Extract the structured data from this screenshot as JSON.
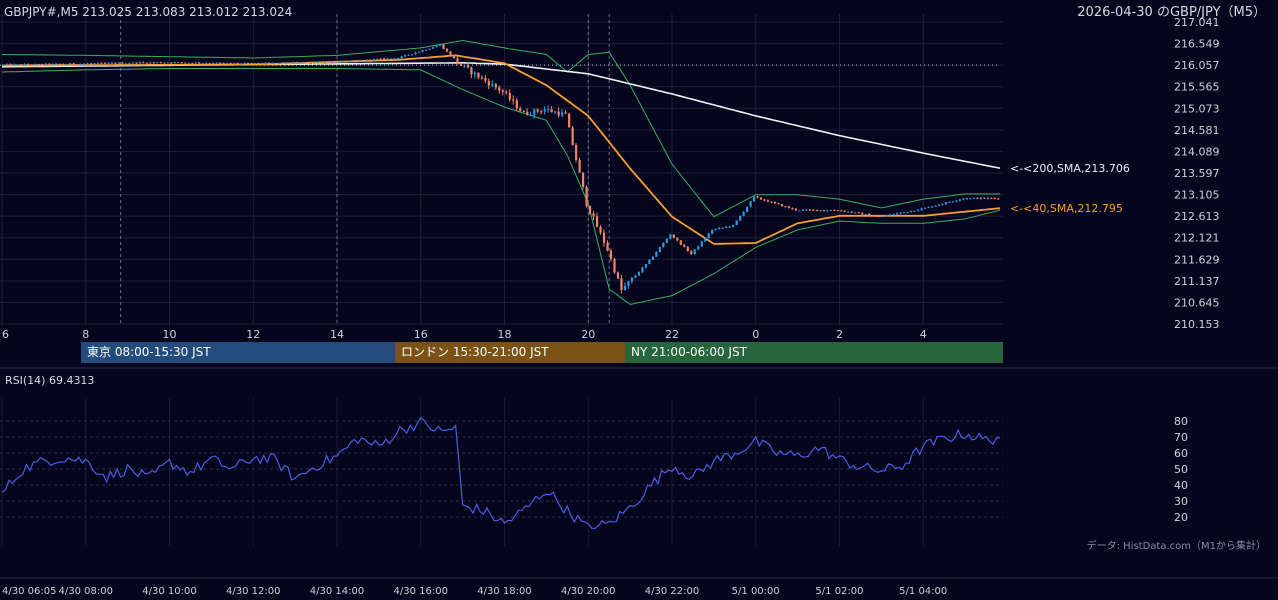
{
  "header": {
    "symbol_info": "GBPJPY#,M5 213.025 213.083 213.012 213.024",
    "chart_title": "2026-04-30 のGBP/JPY（M5）"
  },
  "sessions": [
    {
      "label": "東京 08:00-15:30 JST",
      "color": "#234c7c"
    },
    {
      "label": "ロンドン 15:30-21:00 JST",
      "color": "#7a5216"
    },
    {
      "label": "NY 21:00-06:00 JST",
      "color": "#27663d"
    }
  ],
  "rsi_label": "RSI(14) 69.4313",
  "credit": "データ: HistData.com（M1から集計）",
  "colors": {
    "background": "#05051e",
    "grid": "#1c1f3c",
    "candle_up": "#2b9be0",
    "candle_down": "#ee8766",
    "sma200": "#f0f0f0",
    "sma40": "#f5a030",
    "bollinger": "#39b05e",
    "rsi": "#4a5de0"
  },
  "chart_data": [
    {
      "type": "candlestick",
      "symbol": "GBPJPY#",
      "timeframe": "M5",
      "y_ticks": [
        "217.041",
        "216.549",
        "216.057",
        "215.565",
        "215.073",
        "214.581",
        "214.089",
        "213.597",
        "213.105",
        "212.613",
        "212.121",
        "211.629",
        "211.137",
        "210.645",
        "210.153"
      ],
      "ylim": [
        210.153,
        217.041
      ],
      "x_ticks": [
        "6",
        "8",
        "10",
        "12",
        "14",
        "16",
        "18",
        "20",
        "22",
        "0",
        "2",
        "4"
      ],
      "x_time_range": [
        "4/30 06:00",
        "5/1 05:50"
      ],
      "price_path": [
        {
          "t": "4/30 06:00",
          "p": 216.06
        },
        {
          "t": "4/30 08:00",
          "p": 216.09
        },
        {
          "t": "4/30 10:00",
          "p": 216.12
        },
        {
          "t": "4/30 12:00",
          "p": 216.09
        },
        {
          "t": "4/30 14:00",
          "p": 216.12
        },
        {
          "t": "4/30 15:30",
          "p": 216.22
        },
        {
          "t": "4/30 16:30",
          "p": 216.52
        },
        {
          "t": "4/30 17:00",
          "p": 216.05
        },
        {
          "t": "4/30 18:00",
          "p": 215.45
        },
        {
          "t": "4/30 18:30",
          "p": 214.95
        },
        {
          "t": "4/30 19:00",
          "p": 215.05
        },
        {
          "t": "4/30 19:30",
          "p": 214.92
        },
        {
          "t": "4/30 20:00",
          "p": 212.9
        },
        {
          "t": "4/30 20:30",
          "p": 211.85
        },
        {
          "t": "4/30 20:50",
          "p": 210.92
        },
        {
          "t": "4/30 21:30",
          "p": 211.6
        },
        {
          "t": "4/30 22:00",
          "p": 212.2
        },
        {
          "t": "4/30 22:30",
          "p": 211.75
        },
        {
          "t": "4/30 23:00",
          "p": 212.3
        },
        {
          "t": "4/30 23:30",
          "p": 212.4
        },
        {
          "t": "5/1 00:00",
          "p": 213.05
        },
        {
          "t": "5/1 01:00",
          "p": 212.75
        },
        {
          "t": "5/1 02:00",
          "p": 212.75
        },
        {
          "t": "5/1 03:00",
          "p": 212.6
        },
        {
          "t": "5/1 04:00",
          "p": 212.78
        },
        {
          "t": "5/1 05:00",
          "p": 213.02
        },
        {
          "t": "5/1 05:50",
          "p": 213.02
        }
      ],
      "sma200_path": [
        {
          "t": "4/30 06:00",
          "p": 216.02
        },
        {
          "t": "4/30 12:00",
          "p": 216.07
        },
        {
          "t": "4/30 17:00",
          "p": 216.11
        },
        {
          "t": "4/30 18:00",
          "p": 216.08
        },
        {
          "t": "4/30 20:00",
          "p": 215.86
        },
        {
          "t": "4/30 22:00",
          "p": 215.4
        },
        {
          "t": "5/1 00:00",
          "p": 214.9
        },
        {
          "t": "5/1 02:00",
          "p": 214.45
        },
        {
          "t": "5/1 04:00",
          "p": 214.05
        },
        {
          "t": "5/1 05:50",
          "p": 213.706
        }
      ],
      "sma40_path": [
        {
          "t": "4/30 06:00",
          "p": 216.05
        },
        {
          "t": "4/30 12:00",
          "p": 216.07
        },
        {
          "t": "4/30 15:30",
          "p": 216.18
        },
        {
          "t": "4/30 16:50",
          "p": 216.28
        },
        {
          "t": "4/30 18:00",
          "p": 216.1
        },
        {
          "t": "4/30 19:00",
          "p": 215.6
        },
        {
          "t": "4/30 20:00",
          "p": 214.9
        },
        {
          "t": "4/30 21:00",
          "p": 213.7
        },
        {
          "t": "4/30 22:00",
          "p": 212.6
        },
        {
          "t": "4/30 23:00",
          "p": 211.98
        },
        {
          "t": "5/1 00:00",
          "p": 212.0
        },
        {
          "t": "5/1 01:00",
          "p": 212.45
        },
        {
          "t": "5/1 02:00",
          "p": 212.62
        },
        {
          "t": "5/1 04:00",
          "p": 212.62
        },
        {
          "t": "5/1 05:50",
          "p": 212.795
        }
      ],
      "bb_upper_path": [
        {
          "t": "4/30 06:00",
          "p": 216.3
        },
        {
          "t": "4/30 08:00",
          "p": 216.28
        },
        {
          "t": "4/30 10:00",
          "p": 216.25
        },
        {
          "t": "4/30 12:00",
          "p": 216.22
        },
        {
          "t": "4/30 14:00",
          "p": 216.28
        },
        {
          "t": "4/30 16:00",
          "p": 216.45
        },
        {
          "t": "4/30 17:00",
          "p": 216.62
        },
        {
          "t": "4/30 18:00",
          "p": 216.45
        },
        {
          "t": "4/30 19:00",
          "p": 216.3
        },
        {
          "t": "4/30 19:30",
          "p": 215.9
        },
        {
          "t": "4/30 20:00",
          "p": 216.3
        },
        {
          "t": "4/30 20:30",
          "p": 216.35
        },
        {
          "t": "4/30 21:00",
          "p": 215.6
        },
        {
          "t": "4/30 22:00",
          "p": 213.8
        },
        {
          "t": "4/30 23:00",
          "p": 212.6
        },
        {
          "t": "5/1 00:00",
          "p": 213.1
        },
        {
          "t": "5/1 01:00",
          "p": 213.1
        },
        {
          "t": "5/1 02:00",
          "p": 213.0
        },
        {
          "t": "5/1 03:00",
          "p": 212.8
        },
        {
          "t": "5/1 04:00",
          "p": 213.0
        },
        {
          "t": "5/1 05:00",
          "p": 213.12
        },
        {
          "t": "5/1 05:50",
          "p": 213.12
        }
      ],
      "bb_lower_path": [
        {
          "t": "4/30 06:00",
          "p": 215.9
        },
        {
          "t": "4/30 08:00",
          "p": 215.95
        },
        {
          "t": "4/30 10:00",
          "p": 215.98
        },
        {
          "t": "4/30 12:00",
          "p": 215.98
        },
        {
          "t": "4/30 14:00",
          "p": 215.98
        },
        {
          "t": "4/30 16:00",
          "p": 215.95
        },
        {
          "t": "4/30 17:00",
          "p": 215.5
        },
        {
          "t": "4/30 18:00",
          "p": 215.1
        },
        {
          "t": "4/30 19:00",
          "p": 214.8
        },
        {
          "t": "4/30 19:30",
          "p": 214.0
        },
        {
          "t": "4/30 20:00",
          "p": 212.9
        },
        {
          "t": "4/30 20:30",
          "p": 210.95
        },
        {
          "t": "4/30 21:00",
          "p": 210.6
        },
        {
          "t": "4/30 22:00",
          "p": 210.8
        },
        {
          "t": "4/30 23:00",
          "p": 211.3
        },
        {
          "t": "5/1 00:00",
          "p": 211.9
        },
        {
          "t": "5/1 01:00",
          "p": 212.3
        },
        {
          "t": "5/1 02:00",
          "p": 212.5
        },
        {
          "t": "5/1 03:00",
          "p": 212.45
        },
        {
          "t": "5/1 04:00",
          "p": 212.45
        },
        {
          "t": "5/1 05:00",
          "p": 212.55
        },
        {
          "t": "5/1 05:50",
          "p": 212.75
        }
      ],
      "reference_line": 216.057,
      "session_markers": [
        "4/30 08:50",
        "4/30 14:00",
        "4/30 20:00",
        "4/30 20:30"
      ],
      "annotations": [
        {
          "text": "<-<200,SMA,213.706",
          "price": 213.706,
          "color": "#f0f0f0"
        },
        {
          "text": "<-<40,SMA,212.795",
          "price": 212.795,
          "color": "#f5a030"
        }
      ]
    },
    {
      "type": "line",
      "name": "RSI(14)",
      "last_value": 69.4313,
      "ylim": [
        12,
        88
      ],
      "y_ticks": [
        "80",
        "70",
        "60",
        "50",
        "40",
        "30",
        "20"
      ],
      "x_ticks": [
        "4/30 06:05",
        "4/30 08:00",
        "4/30 10:00",
        "4/30 12:00",
        "4/30 14:00",
        "4/30 16:00",
        "4/30 18:00",
        "4/30 20:00",
        "4/30 22:00",
        "5/1 00:00",
        "5/1 02:00",
        "5/1 04:00"
      ],
      "x_time_range": [
        "4/30 06:00",
        "5/1 05:50"
      ],
      "path": [
        {
          "t": "4/30 06:00",
          "v": 35
        },
        {
          "t": "4/30 06:30",
          "v": 50
        },
        {
          "t": "4/30 07:00",
          "v": 55
        },
        {
          "t": "4/30 07:30",
          "v": 57
        },
        {
          "t": "4/30 08:00",
          "v": 55
        },
        {
          "t": "4/30 08:30",
          "v": 45
        },
        {
          "t": "4/30 09:00",
          "v": 50
        },
        {
          "t": "4/30 09:30",
          "v": 44
        },
        {
          "t": "4/30 10:00",
          "v": 54
        },
        {
          "t": "4/30 10:30",
          "v": 48
        },
        {
          "t": "4/30 11:00",
          "v": 56
        },
        {
          "t": "4/30 11:30",
          "v": 50
        },
        {
          "t": "4/30 12:00",
          "v": 57
        },
        {
          "t": "4/30 12:30",
          "v": 56
        },
        {
          "t": "4/30 13:00",
          "v": 44
        },
        {
          "t": "4/30 13:30",
          "v": 52
        },
        {
          "t": "4/30 14:00",
          "v": 58
        },
        {
          "t": "4/30 14:30",
          "v": 69
        },
        {
          "t": "4/30 15:00",
          "v": 64
        },
        {
          "t": "4/30 15:30",
          "v": 74
        },
        {
          "t": "4/30 16:00",
          "v": 79
        },
        {
          "t": "4/30 16:30",
          "v": 73
        },
        {
          "t": "4/30 16:50",
          "v": 76
        },
        {
          "t": "4/30 17:00",
          "v": 27
        },
        {
          "t": "4/30 17:30",
          "v": 24
        },
        {
          "t": "4/30 18:00",
          "v": 16
        },
        {
          "t": "4/30 18:30",
          "v": 25
        },
        {
          "t": "4/30 19:00",
          "v": 37
        },
        {
          "t": "4/30 19:30",
          "v": 24
        },
        {
          "t": "4/30 20:00",
          "v": 13
        },
        {
          "t": "4/30 20:30",
          "v": 16
        },
        {
          "t": "4/30 21:00",
          "v": 26
        },
        {
          "t": "4/30 21:30",
          "v": 40
        },
        {
          "t": "4/30 22:00",
          "v": 52
        },
        {
          "t": "4/30 22:30",
          "v": 45
        },
        {
          "t": "4/30 23:00",
          "v": 55
        },
        {
          "t": "4/30 23:30",
          "v": 60
        },
        {
          "t": "5/1 00:00",
          "v": 67
        },
        {
          "t": "5/1 00:30",
          "v": 60
        },
        {
          "t": "5/1 01:00",
          "v": 58
        },
        {
          "t": "5/1 01:30",
          "v": 63
        },
        {
          "t": "5/1 02:00",
          "v": 56
        },
        {
          "t": "5/1 02:30",
          "v": 51
        },
        {
          "t": "5/1 03:00",
          "v": 49
        },
        {
          "t": "5/1 03:30",
          "v": 52
        },
        {
          "t": "5/1 04:00",
          "v": 64
        },
        {
          "t": "5/1 04:30",
          "v": 69
        },
        {
          "t": "5/1 05:00",
          "v": 72
        },
        {
          "t": "5/1 05:30",
          "v": 68
        },
        {
          "t": "5/1 05:50",
          "v": 69.4313
        }
      ]
    }
  ]
}
